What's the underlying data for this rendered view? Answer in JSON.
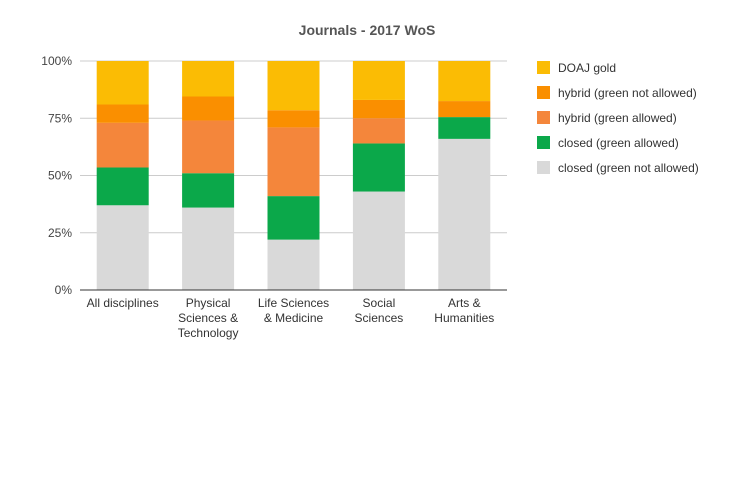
{
  "chart_data": {
    "type": "bar",
    "stacked": true,
    "normalized": true,
    "title": "Journals - 2017 WoS",
    "categories": [
      [
        "All disciplines"
      ],
      [
        "Physical",
        "Sciences &",
        "Technology"
      ],
      [
        "Life Sciences",
        "& Medicine"
      ],
      [
        "Social",
        "Sciences"
      ],
      [
        "Arts &",
        "Humanities"
      ]
    ],
    "ylim": [
      0,
      100
    ],
    "yticks": [
      0,
      25,
      50,
      75,
      100
    ],
    "ytick_labels": [
      "0%",
      "25%",
      "50%",
      "75%",
      "100%"
    ],
    "grid": true,
    "legend_position": "right",
    "series": [
      {
        "name": "closed (green not allowed)",
        "color": "#d9d9d9",
        "values": [
          37,
          36,
          22,
          43,
          66
        ]
      },
      {
        "name": "closed (green allowed)",
        "color": "#0ba84a",
        "values": [
          16.5,
          15,
          19,
          21,
          9.5
        ]
      },
      {
        "name": "hybrid (green allowed)",
        "color": "#f4863b",
        "values": [
          19.5,
          23,
          30,
          11,
          0
        ]
      },
      {
        "name": "hybrid (green not allowed)",
        "color": "#fa8f00",
        "values": [
          8,
          10.5,
          7.5,
          8,
          7
        ]
      },
      {
        "name": "DOAJ gold",
        "color": "#fbbc04",
        "values": [
          19,
          15.5,
          21.5,
          17,
          17.5
        ]
      }
    ],
    "legend_order": [
      4,
      3,
      2,
      1,
      0
    ]
  }
}
